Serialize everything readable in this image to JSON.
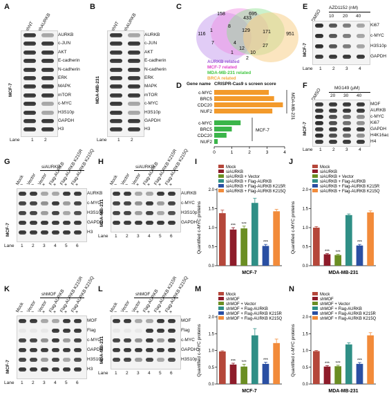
{
  "panels": {
    "A": {
      "letter": "A",
      "cell": "MCF-7",
      "cols": [
        "shNT",
        "shAURKB"
      ],
      "rows": [
        "AURKB",
        "c-JUN",
        "AKT",
        "E-cadherin",
        "N-cadherin",
        "ERK",
        "MAPK",
        "mTOR",
        "c-MYC",
        "H3S10p",
        "GAPDH",
        "H3"
      ],
      "lane_label": "Lane",
      "lanes": [
        "1",
        "2"
      ]
    },
    "B": {
      "letter": "B",
      "cell": "MDA-MB-231",
      "cols": [
        "shNT",
        "shAURKB"
      ],
      "rows": [
        "AURKB",
        "c-JUN",
        "AKT",
        "E-cadherin",
        "N-cadherin",
        "ERK",
        "MAPK",
        "mTOR",
        "c-MYC",
        "H3S10p",
        "GAPDH",
        "H3"
      ],
      "lane_label": "Lane",
      "lanes": [
        "1",
        "2"
      ]
    },
    "C": {
      "letter": "C",
      "venn_numbers": [
        "116",
        "158",
        "695",
        "951",
        "1",
        "433",
        "171",
        "129",
        "8",
        "7",
        "4",
        "12",
        "1",
        "27",
        "10",
        "2"
      ],
      "legend": [
        {
          "label": "AURKB related",
          "color": "#9b59d6"
        },
        {
          "label": "MCF-7 related",
          "color": "#e040c8"
        },
        {
          "label": "MDA-MB-231 related",
          "color": "#3fc63f"
        },
        {
          "label": "BRCA related",
          "color": "#f2a93b"
        }
      ]
    },
    "D": {
      "letter": "D",
      "gene_header": "Gene name",
      "score_header": "CRISPR-Cas9 s screen score",
      "group1_label": "MDA-MB-231",
      "group2_label": "MCF-7"
    },
    "E": {
      "letter": "E",
      "treatment": "AZD1152 (nM)",
      "cols": [
        "DMSO",
        "10",
        "20",
        "40"
      ],
      "rows": [
        "Ki67",
        "c-MYC",
        "H3S10p",
        "GAPDH"
      ],
      "cell": "MCF-7",
      "lane_label": "Lane",
      "lanes": [
        "1",
        "2",
        "3",
        "4"
      ]
    },
    "F": {
      "letter": "F",
      "treatment": "MG149 (μM)",
      "cols": [
        "DMSO",
        "20",
        "30",
        "40"
      ],
      "rows": [
        "MOF",
        "AURKB",
        "c-MYC",
        "Ki67",
        "GAPDH",
        "H4K16ac",
        "H4"
      ],
      "cell": "MCF-7",
      "lane_label": "Lane",
      "lanes": [
        "1",
        "2",
        "3",
        "4"
      ]
    },
    "G": {
      "letter": "G",
      "bracket": "siAURKB",
      "cell": "MCF-7",
      "cols": [
        "Mock",
        "Vector",
        "Vector",
        "Flag-AURKB",
        "Flag-AURKB K215R",
        "Flag-AURKB K215Q"
      ],
      "signs": [
        "−",
        "−",
        "+",
        "+",
        "+",
        "+"
      ],
      "rows": [
        "AURKB",
        "c-MYC",
        "H3S10p",
        "GAPDH",
        "H3"
      ],
      "lane_label": "Lane",
      "lanes": [
        "1",
        "2",
        "3",
        "4",
        "5",
        "6"
      ]
    },
    "H": {
      "letter": "H",
      "bracket": "siAURKB",
      "cell": "MDA-MB-231",
      "cols": [
        "Mock",
        "Vector",
        "Vector",
        "Flag-AURKB",
        "Flag-AURKB K215R",
        "Flag-AURKB K215Q"
      ],
      "signs": [
        "−",
        "−",
        "+",
        "+",
        "+",
        "+"
      ],
      "rows": [
        "AURKB",
        "c-MYC",
        "H3S10p",
        "GAPDH"
      ],
      "lane_label": "Lane",
      "lanes": [
        "1",
        "2",
        "3",
        "4",
        "5",
        "6"
      ]
    },
    "K": {
      "letter": "K",
      "bracket": "shMOF",
      "cell": "MCF-7",
      "cols": [
        "Mock",
        "Vector",
        "Vector",
        "Flag-AURKB",
        "Flag-AURKB K215R",
        "Flag-AURKB K215Q"
      ],
      "signs": [
        "−",
        "−",
        "+",
        "+",
        "+",
        "+"
      ],
      "rows": [
        "MOF",
        "Flag",
        "c-MYC",
        "GAPDH",
        "H3S10p",
        "H3"
      ],
      "lane_label": "Lane",
      "lanes": [
        "1",
        "2",
        "3",
        "4",
        "5",
        "6"
      ]
    },
    "L": {
      "letter": "L",
      "bracket": "shMOF",
      "cell": "MDA-MB-231",
      "cols": [
        "Mock",
        "Vector",
        "Vector",
        "Flag-AURKB",
        "Flag-AURKB K215R",
        "Flag-AURKB K215Q"
      ],
      "signs": [
        "−",
        "−",
        "+",
        "+",
        "+",
        "+"
      ],
      "rows": [
        "MOF",
        "Flag",
        "c-MYC",
        "GAPDH",
        "H3S10p"
      ],
      "lane_label": "Lane",
      "lanes": [
        "1",
        "2",
        "3",
        "4",
        "5",
        "6"
      ]
    },
    "I": {
      "letter": "I"
    },
    "J": {
      "letter": "J"
    },
    "M": {
      "letter": "M"
    },
    "N": {
      "letter": "N"
    }
  },
  "chart_data": [
    {
      "id": "D",
      "type": "bar",
      "orientation": "horizontal",
      "categories": [
        "c-MYC",
        "BRC5",
        "CDC20",
        "NUF2"
      ],
      "series": [
        {
          "group": "MDA-MB-231",
          "color": "#f39a2b",
          "values": [
            3.1,
            3.4,
            3.9,
            3.3
          ]
        },
        {
          "group": "MCF-7",
          "color": "#3bb54a",
          "values": [
            1.5,
            1.0,
            0.7,
            0.2
          ]
        }
      ],
      "xlim": [
        0,
        4
      ],
      "xticks": [
        "0",
        "1",
        "2",
        "3",
        "4"
      ]
    },
    {
      "id": "I",
      "type": "bar",
      "xlabel": "MCF-7",
      "ylabel": "Quantified c-MYC proteins",
      "ylim": [
        0,
        2.0
      ],
      "yticks": [
        "0.0",
        "0.5",
        "1.0",
        "1.5",
        "2.0"
      ],
      "series": [
        {
          "name": "Mock",
          "color": "#b5473a",
          "value": 1.38,
          "err": 0.08,
          "stars": ""
        },
        {
          "name": "siAURKB",
          "color": "#8e1c2a",
          "value": 0.95,
          "err": 0.05,
          "stars": "***"
        },
        {
          "name": "siAURKB + Vector",
          "color": "#6b8e23",
          "value": 0.98,
          "err": 0.06,
          "stars": "***"
        },
        {
          "name": "siAURKB + Flag-AURKB",
          "color": "#2f8f86",
          "value": 1.65,
          "err": 0.12,
          "stars": ""
        },
        {
          "name": "siAURKB + Flag-AURKB K215R",
          "color": "#2a4fa3",
          "value": 0.52,
          "err": 0.04,
          "stars": "***"
        },
        {
          "name": "siAURKB + Flag-AURKB K215Q",
          "color": "#f28b3a",
          "value": 1.43,
          "err": 0.05,
          "stars": ""
        }
      ]
    },
    {
      "id": "J",
      "type": "bar",
      "xlabel": "MDA-MB-231",
      "ylabel": "Quantified c-MYC proteins",
      "ylim": [
        0,
        2.0
      ],
      "yticks": [
        "0.0",
        "0.5",
        "1.0",
        "1.5",
        "2.0"
      ],
      "series": [
        {
          "name": "Mock",
          "color": "#b5473a",
          "value": 1.0,
          "err": 0.03,
          "stars": ""
        },
        {
          "name": "siAURKB",
          "color": "#8e1c2a",
          "value": 0.3,
          "err": 0.02,
          "stars": "***"
        },
        {
          "name": "siAURKB + Vector",
          "color": "#6b8e23",
          "value": 0.28,
          "err": 0.02,
          "stars": "***"
        },
        {
          "name": "siAURKB + Flag-AURKB",
          "color": "#2f8f86",
          "value": 1.33,
          "err": 0.03,
          "stars": ""
        },
        {
          "name": "siAURKB + Flag-AURKB K215R",
          "color": "#2a4fa3",
          "value": 0.53,
          "err": 0.03,
          "stars": "***"
        },
        {
          "name": "siAURKB + Flag-AURKB K215Q",
          "color": "#f28b3a",
          "value": 1.4,
          "err": 0.04,
          "stars": ""
        }
      ]
    },
    {
      "id": "M",
      "type": "bar",
      "xlabel": "MCF-7",
      "ylabel": "Quantified c-MYC proteins",
      "ylim": [
        0,
        2.0
      ],
      "yticks": [
        "0.0",
        "0.5",
        "1.0",
        "1.5",
        "2.0"
      ],
      "series": [
        {
          "name": "Mock",
          "color": "#b5473a",
          "value": 0.97,
          "err": 0.02,
          "stars": ""
        },
        {
          "name": "shMOF",
          "color": "#8e1c2a",
          "value": 0.58,
          "err": 0.04,
          "stars": "***"
        },
        {
          "name": "shMOF + Vector",
          "color": "#6b8e23",
          "value": 0.52,
          "err": 0.07,
          "stars": "***"
        },
        {
          "name": "shMOF + Flag-AURKB",
          "color": "#2f8f86",
          "value": 1.45,
          "err": 0.2,
          "stars": ""
        },
        {
          "name": "shMOF + Flag-AURKB K215R",
          "color": "#2a4fa3",
          "value": 0.6,
          "err": 0.05,
          "stars": "***"
        },
        {
          "name": "shMOF + Flag-AURKB K215Q",
          "color": "#f28b3a",
          "value": 1.22,
          "err": 0.12,
          "stars": ""
        }
      ]
    },
    {
      "id": "N",
      "type": "bar",
      "xlabel": "MDA-MB-231",
      "ylabel": "Quantified c-MYC proteins",
      "ylim": [
        0,
        2.0
      ],
      "yticks": [
        "0.0",
        "0.5",
        "1.0",
        "1.5",
        "2.0"
      ],
      "series": [
        {
          "name": "Mock",
          "color": "#b5473a",
          "value": 0.98,
          "err": 0.02,
          "stars": ""
        },
        {
          "name": "shMOF",
          "color": "#8e1c2a",
          "value": 0.52,
          "err": 0.03,
          "stars": "***"
        },
        {
          "name": "shMOF + Vector",
          "color": "#6b8e23",
          "value": 0.53,
          "err": 0.03,
          "stars": "***"
        },
        {
          "name": "shMOF + Flag-AURKB",
          "color": "#2f8f86",
          "value": 1.18,
          "err": 0.05,
          "stars": ""
        },
        {
          "name": "shMOF + Flag-AURKB K215R",
          "color": "#2a4fa3",
          "value": 0.6,
          "err": 0.04,
          "stars": "***"
        },
        {
          "name": "shMOF + Flag-AURKB K215Q",
          "color": "#f28b3a",
          "value": 1.45,
          "err": 0.08,
          "stars": ""
        }
      ]
    }
  ]
}
